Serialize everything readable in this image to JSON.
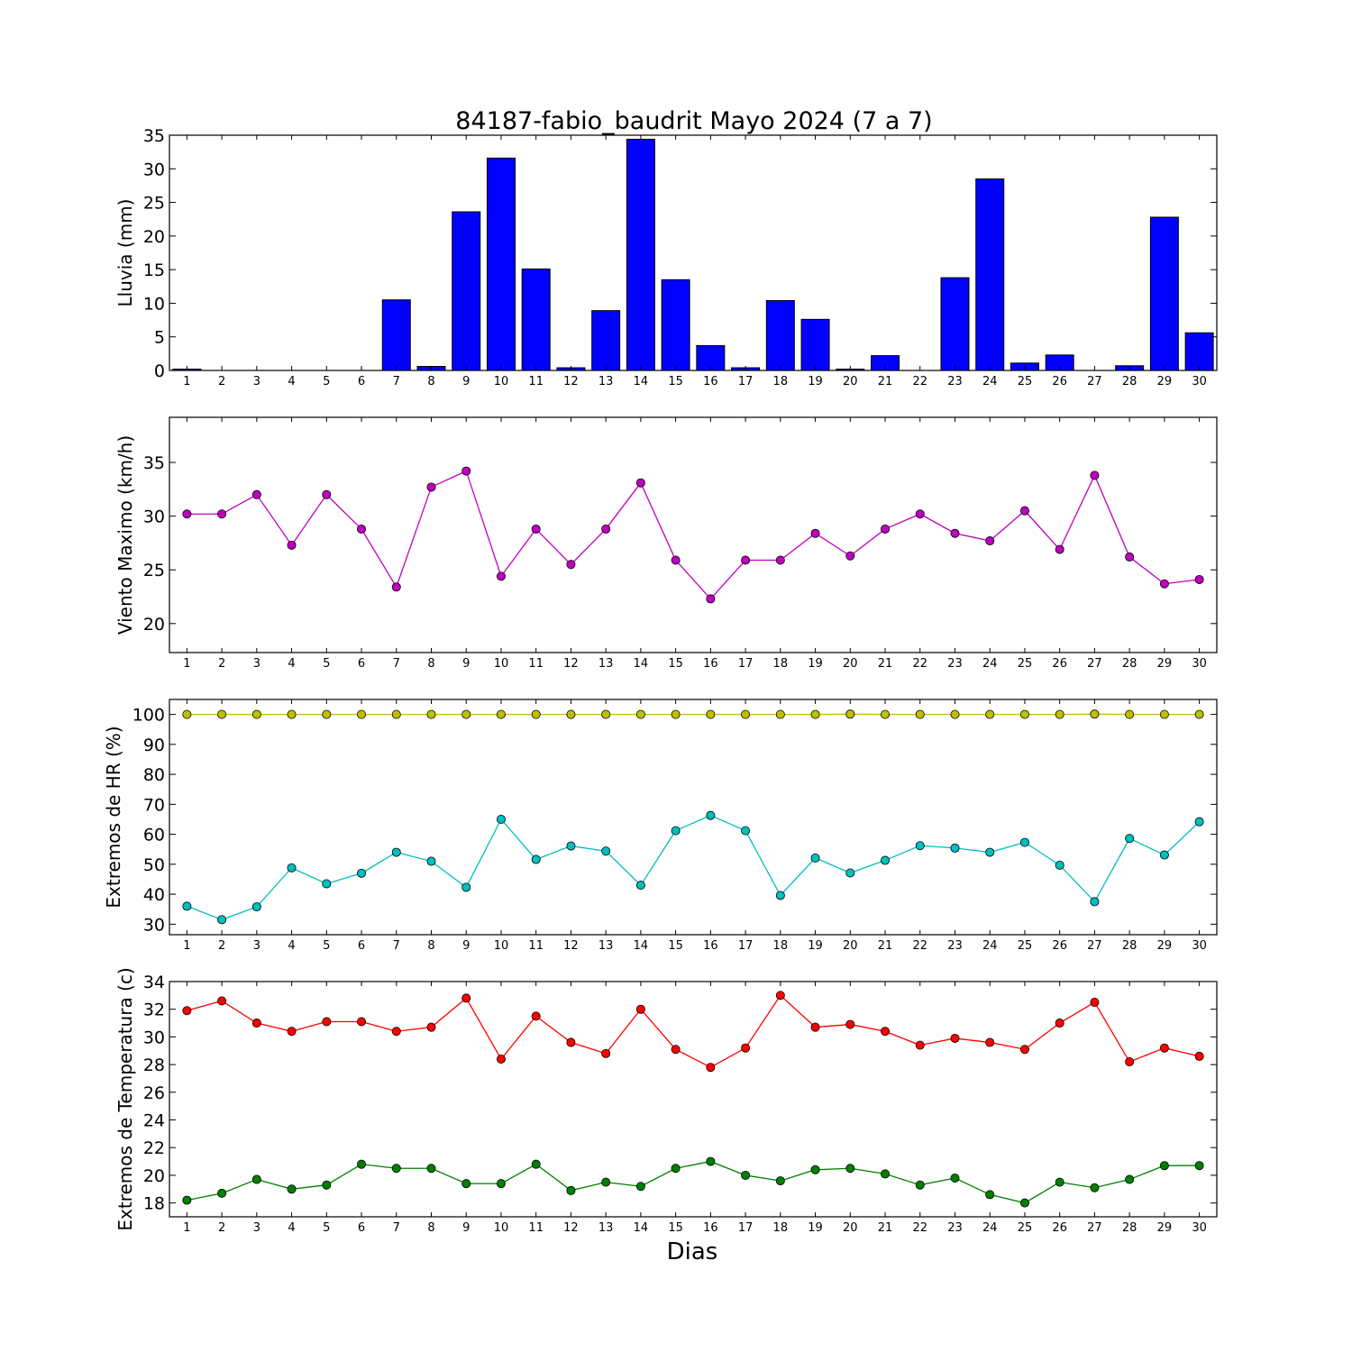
{
  "title": "84187-fabio_baudrit Mayo 2024  (7 a 7)",
  "xlabel": "Dias",
  "days": [
    1,
    2,
    3,
    4,
    5,
    6,
    7,
    8,
    9,
    10,
    11,
    12,
    13,
    14,
    15,
    16,
    17,
    18,
    19,
    20,
    21,
    22,
    23,
    24,
    25,
    26,
    27,
    28,
    29,
    30
  ],
  "chart_data": [
    {
      "type": "bar",
      "ylabel": "Lluvia (mm)",
      "ylim": [
        0,
        35
      ],
      "yticks": [
        0,
        5,
        10,
        15,
        20,
        25,
        30,
        35
      ],
      "color": "#0000ff",
      "series": [
        {
          "values": [
            0.2,
            0,
            0,
            0,
            0,
            0,
            10.5,
            0.6,
            23.6,
            31.6,
            15.1,
            0.4,
            8.9,
            34.4,
            13.5,
            3.7,
            0.4,
            10.4,
            7.6,
            0.2,
            2.2,
            0,
            13.8,
            28.5,
            1.1,
            2.3,
            0,
            0.7,
            22.8,
            5.6
          ]
        }
      ]
    },
    {
      "type": "line",
      "ylabel": "Viento Maximo (km/h)",
      "ylim": [
        17.3,
        39.2
      ],
      "yticks": [
        20,
        25,
        30,
        35
      ],
      "series": [
        {
          "color": "#bf00bf",
          "values": [
            30.2,
            30.2,
            32.0,
            27.3,
            32.0,
            28.8,
            23.4,
            32.7,
            34.2,
            24.4,
            28.8,
            25.5,
            28.8,
            33.1,
            25.9,
            22.3,
            25.9,
            25.9,
            28.4,
            26.3,
            28.8,
            30.2,
            28.4,
            27.7,
            30.5,
            26.9,
            33.8,
            26.2,
            23.7,
            24.1
          ]
        }
      ]
    },
    {
      "type": "line",
      "ylabel": "Extremos de HR (%)",
      "ylim": [
        26.5,
        105
      ],
      "yticks": [
        30,
        40,
        50,
        60,
        70,
        80,
        90,
        100
      ],
      "series": [
        {
          "color": "#bfbf00",
          "values": [
            100,
            100,
            100,
            100,
            100,
            100,
            100,
            100,
            100,
            100,
            100,
            100,
            100,
            100,
            100,
            100,
            100,
            100,
            100,
            100.1,
            100,
            100,
            100,
            100,
            100,
            100,
            100.1,
            100,
            100,
            100
          ]
        },
        {
          "color": "#00bfbf",
          "values": [
            36.0,
            31.5,
            35.8,
            48.8,
            43.5,
            47.0,
            54.0,
            51.0,
            42.3,
            65.0,
            51.6,
            56.1,
            54.4,
            43.0,
            61.2,
            66.3,
            61.2,
            39.6,
            52.1,
            47.1,
            51.3,
            56.2,
            55.4,
            54.0,
            57.3,
            49.7,
            37.5,
            58.6,
            53.1,
            64.2
          ]
        }
      ]
    },
    {
      "type": "line",
      "ylabel": "Extremos de Temperatura (c)",
      "ylim": [
        17,
        34
      ],
      "yticks": [
        18,
        20,
        22,
        24,
        26,
        28,
        30,
        32,
        34
      ],
      "series": [
        {
          "color": "#ff0000",
          "values": [
            31.9,
            32.6,
            31.0,
            30.4,
            31.1,
            31.1,
            30.4,
            30.7,
            32.8,
            28.4,
            31.5,
            29.6,
            28.8,
            32.0,
            29.1,
            27.8,
            29.2,
            33.0,
            30.7,
            30.9,
            30.4,
            29.4,
            29.9,
            29.6,
            29.1,
            31.0,
            32.5,
            28.2,
            29.2,
            28.6
          ]
        },
        {
          "color": "#007f00",
          "values": [
            18.2,
            18.7,
            19.7,
            19.0,
            19.3,
            20.8,
            20.5,
            20.5,
            19.4,
            19.4,
            20.8,
            18.9,
            19.5,
            19.2,
            20.5,
            21.0,
            20.0,
            19.6,
            20.4,
            20.5,
            20.1,
            19.3,
            19.8,
            18.6,
            18.0,
            19.5,
            19.1,
            19.7,
            20.7,
            20.7
          ]
        }
      ]
    }
  ]
}
